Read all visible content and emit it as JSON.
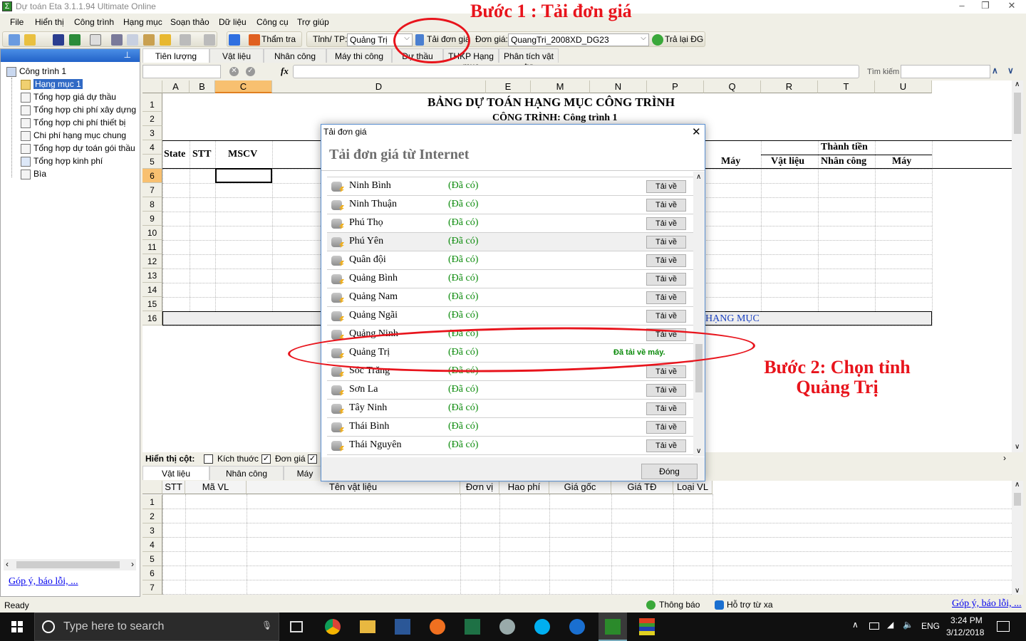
{
  "window": {
    "title": "Dự toán Eta 3.1.1.94 Ultimate Online",
    "controls": [
      "–",
      "❐",
      "✕"
    ]
  },
  "menu": [
    "File",
    "Hiển thị",
    "Công trình",
    "Hạng mục",
    "Soạn thảo",
    "Dữ liệu",
    "Công cụ",
    "Trợ giúp"
  ],
  "toolbar": {
    "tham_tra": "Thẩm tra",
    "province_label": "Tỉnh/ TP:",
    "province_value": "Quảng Trị",
    "download_label": "Tải đơn giá",
    "dongia_label": "Đơn giá:",
    "dongia_value": "QuangTri_2008XD_DG23",
    "restore_label": "Trả lại ĐG"
  },
  "sidebar": {
    "root": "Công trình 1",
    "items": [
      "Hạng mục 1",
      "Tổng hợp giá dự thầu",
      "Tổng hợp chi phí xây dựng",
      "Tổng hợp chi phí thiết bị",
      "Chi phí hạng mục chung",
      "Tổng hợp dự toán gói thầu",
      "Tổng hợp kinh phí",
      "Bìa"
    ],
    "feedback_link": "Góp ý, báo lỗi, ..."
  },
  "tabs": [
    "Tiên lượng",
    "Vật liệu",
    "Nhân công",
    "Máy thi công",
    "Dự thầu",
    "THKP Hạng mục",
    "Phân tích vật tư"
  ],
  "formula": {
    "fx": "fx",
    "search_label": "Tìm kiếm",
    "search_value": ""
  },
  "sheet": {
    "columns": [
      "A",
      "B",
      "C",
      "D",
      "E",
      "M",
      "N",
      "P",
      "Q",
      "R",
      "T",
      "U"
    ],
    "rows": [
      "1",
      "2",
      "3",
      "4",
      "5",
      "6",
      "7",
      "8",
      "9",
      "10",
      "11",
      "12",
      "13",
      "14",
      "15",
      "16"
    ],
    "title": "BẢNG DỰ TOÁN HẠNG MỤC CÔNG TRÌNH",
    "subtitle": "CÔNG TRÌNH: Công trình 1",
    "headers": {
      "state": "State",
      "stt": "STT",
      "mscv": "MSCV",
      "may_p": "Máy",
      "thanh_tien": "Thành tiền",
      "vat_lieu": "Vật liệu",
      "nhan_cong": "Nhân công",
      "may": "Máy"
    },
    "row16": "HẠNG MỤC"
  },
  "lower": {
    "show_cols_label": "Hiển thị cột:",
    "checks": [
      {
        "label": "Kích thuớc",
        "checked": false
      },
      {
        "label": "Đơn giá",
        "checked": true
      }
    ],
    "tabs": [
      "Vật liệu",
      "Nhân công",
      "Máy"
    ],
    "columns": [
      "STT",
      "Mã VL",
      "Tên vật liệu",
      "Đơn vị",
      "Hao phí",
      "Giá gốc",
      "Giá TĐ",
      "Loại VL"
    ],
    "rows": [
      "1",
      "2",
      "3",
      "4",
      "5",
      "6",
      "7"
    ]
  },
  "dialog": {
    "title": "Tải đơn giá",
    "heading": "Tải đơn giá từ Internet",
    "close_label": "Đóng",
    "download_btn": "Tải về",
    "items": [
      {
        "name": "Ninh Bình",
        "status": "(Đã có)"
      },
      {
        "name": "Ninh Thuận",
        "status": "(Đã có)"
      },
      {
        "name": "Phú Thọ",
        "status": "(Đã có)"
      },
      {
        "name": "Phú Yên",
        "status": "(Đã có)",
        "hover": true
      },
      {
        "name": "Quân đội",
        "status": "(Đã có)"
      },
      {
        "name": "Quảng Bình",
        "status": "(Đã có)"
      },
      {
        "name": "Quảng Nam",
        "status": "(Đã có)"
      },
      {
        "name": "Quảng Ngãi",
        "status": "(Đã có)"
      },
      {
        "name": "Quảng Ninh",
        "status": "(Đã có)"
      },
      {
        "name": "Quảng Trị",
        "status": "(Đã có)",
        "done": "Đã tải về máy."
      },
      {
        "name": "Sóc Trăng",
        "status": "(Đã có)"
      },
      {
        "name": "Sơn La",
        "status": "(Đã có)"
      },
      {
        "name": "Tây Ninh",
        "status": "(Đã có)"
      },
      {
        "name": "Thái Bình",
        "status": "(Đã có)"
      },
      {
        "name": "Thái Nguyên",
        "status": "(Đã có)"
      }
    ]
  },
  "annotations": {
    "step1": "Bước 1 : Tải đơn giá",
    "step2_line1": "Bước 2: Chọn tỉnh",
    "step2_line2": "Quảng Trị",
    "color": "#e8141c"
  },
  "status": {
    "ready": "Ready",
    "notify": "Thông báo",
    "remote": "Hỗ trợ từ xa",
    "feedback": "Góp ý, báo lỗi, ..."
  },
  "taskbar": {
    "search_placeholder": "Type here to search",
    "lang": "ENG",
    "time": "3:24 PM",
    "date": "3/12/2018"
  }
}
